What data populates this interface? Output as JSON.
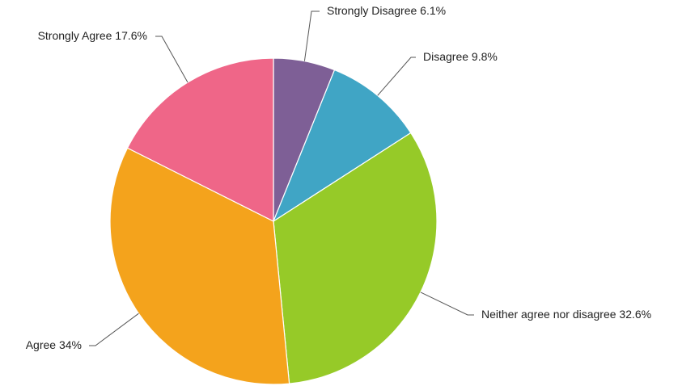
{
  "chart_data": {
    "type": "pie",
    "slices": [
      {
        "label": "Strongly Disagree",
        "value": 6.1,
        "text": "Strongly Disagree 6.1%",
        "color": "#7e5f96"
      },
      {
        "label": "Disagree",
        "value": 9.8,
        "text": "Disagree 9.8%",
        "color": "#40a5c5"
      },
      {
        "label": "Neither agree nor disagree",
        "value": 32.6,
        "text": "Neither agree nor disagree 32.6%",
        "color": "#96ca28"
      },
      {
        "label": "Agree",
        "value": 34,
        "text": "Agree 34%",
        "color": "#f4a31c"
      },
      {
        "label": "Strongly Agree",
        "value": 17.6,
        "text": "Strongly Agree 17.6%",
        "color": "#ef6688"
      }
    ],
    "start": "12 o'clock",
    "direction": "clockwise",
    "legend": "none",
    "labels": "outside with leader lines"
  }
}
